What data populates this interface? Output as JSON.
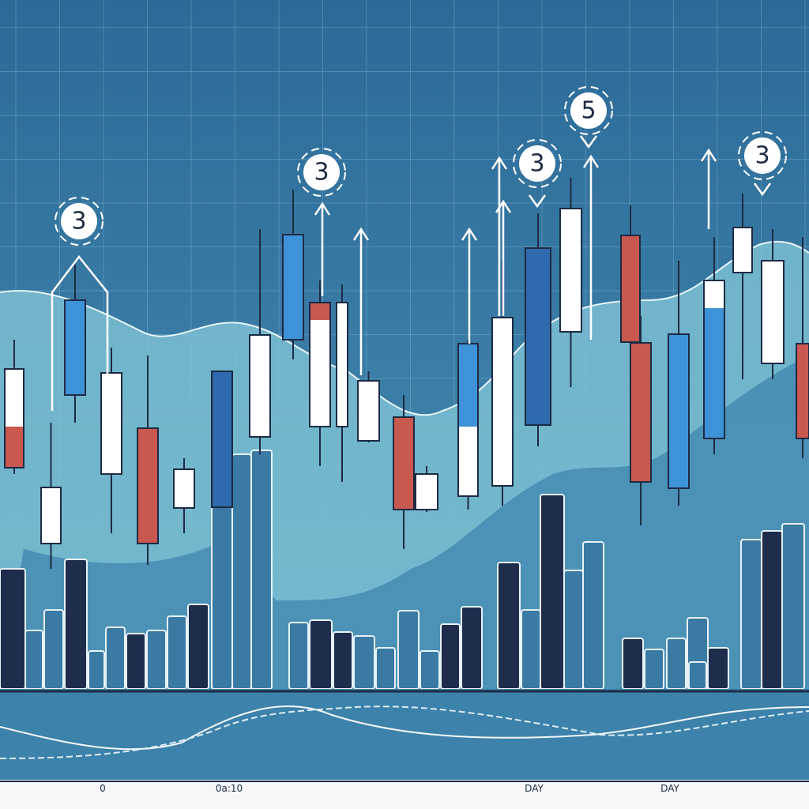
{
  "badges": [
    "3",
    "3",
    "3",
    "5",
    "3"
  ],
  "axis_labels": [
    "0",
    "0a:10",
    "DAY",
    "DAY"
  ]
}
